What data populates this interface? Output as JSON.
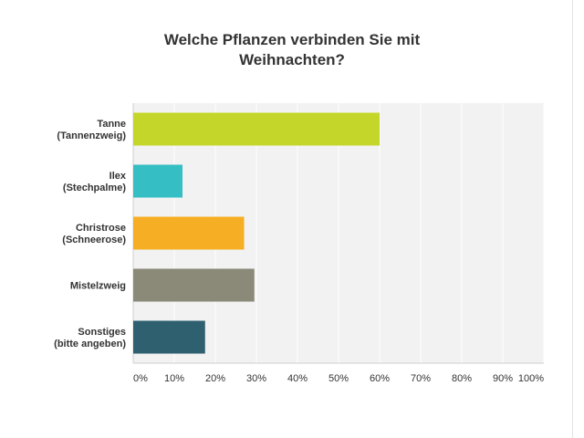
{
  "chart_data": {
    "type": "bar",
    "orientation": "horizontal",
    "title_lines": [
      "Welche Pflanzen verbinden Sie mit",
      "Weihnachten?"
    ],
    "categories": [
      [
        "Tanne",
        "(Tannenzweig)"
      ],
      [
        "Ilex",
        "(Stechpalme)"
      ],
      [
        "Christrose",
        "(Schneerose)"
      ],
      [
        "Mistelzweig"
      ],
      [
        "Sonstiges",
        "(bitte angeben)"
      ]
    ],
    "values": [
      60,
      12,
      27,
      29.5,
      17.5
    ],
    "colors": [
      "#c5d62a",
      "#35bec4",
      "#f6ae24",
      "#8b8a78",
      "#2f6070"
    ],
    "xlim": [
      0,
      100
    ],
    "x_ticks": [
      "0%",
      "10%",
      "20%",
      "30%",
      "40%",
      "50%",
      "60%",
      "70%",
      "80%",
      "90%",
      "100%"
    ],
    "grid": true,
    "plot_background": "#f2f2f2"
  }
}
